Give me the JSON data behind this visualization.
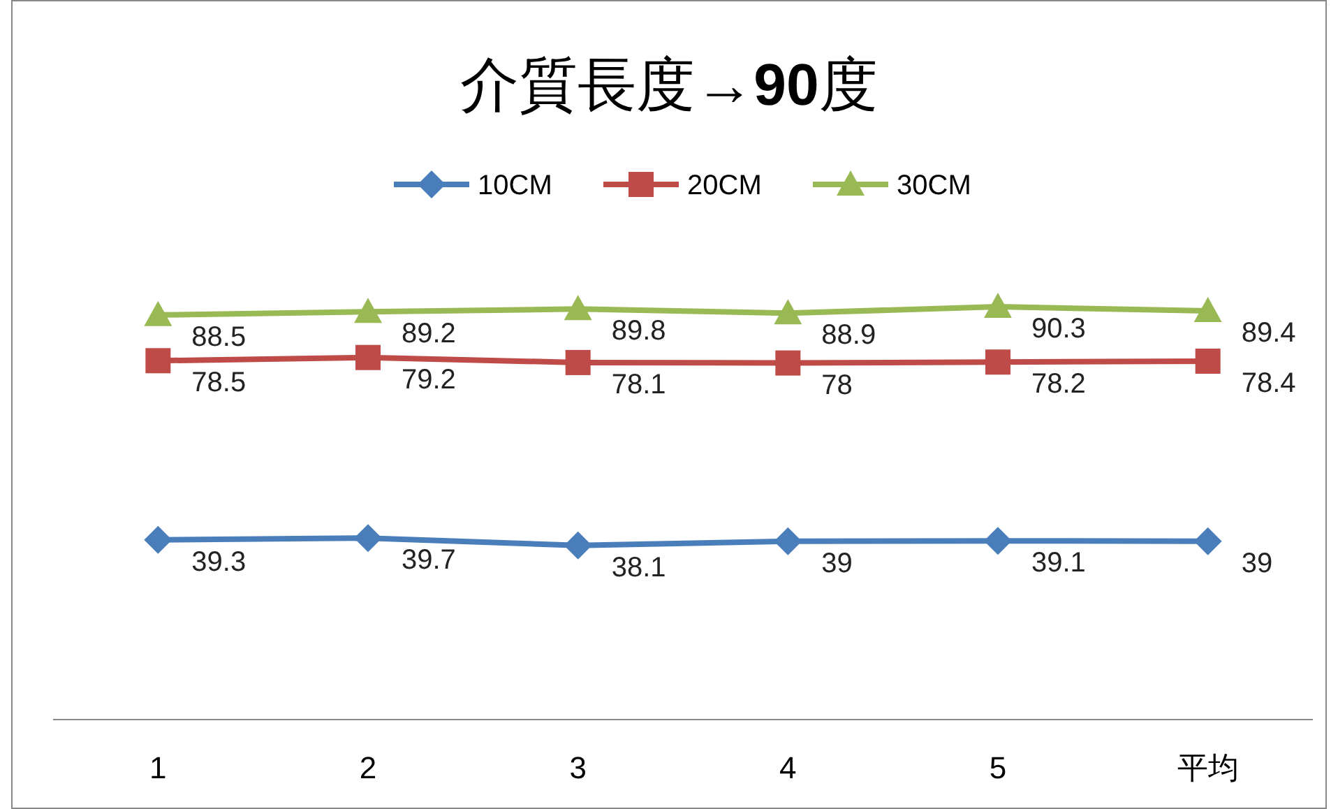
{
  "chart_data": {
    "type": "line",
    "title": "介質長度**→90**度",
    "categories": [
      "1",
      "2",
      "3",
      "4",
      "5",
      "平均"
    ],
    "series": [
      {
        "name": "10CM",
        "color": "#4a7ebb",
        "marker": "diamond",
        "values": [
          39.3,
          39.7,
          38.1,
          39,
          39.1,
          39
        ]
      },
      {
        "name": "20CM",
        "color": "#be4b48",
        "marker": "square",
        "values": [
          78.5,
          79.2,
          78.1,
          78,
          78.2,
          78.4
        ]
      },
      {
        "name": "30CM",
        "color": "#98b954",
        "marker": "triangle",
        "values": [
          88.5,
          89.2,
          89.8,
          88.9,
          90.3,
          89.4
        ]
      }
    ],
    "data_labels": true,
    "legend": "top",
    "grid": false,
    "line_style": "solid"
  }
}
